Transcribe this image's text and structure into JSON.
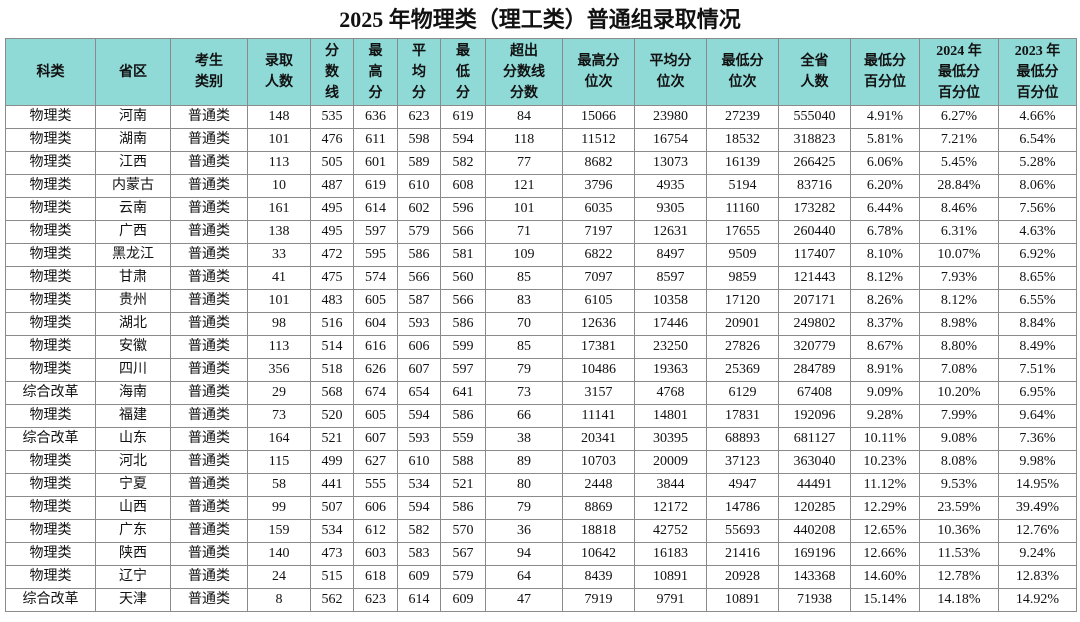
{
  "header": {
    "title": "2025 年物理类（理工类）普通组录取情况"
  },
  "table": {
    "columns": [
      "科类",
      "省区",
      "考生\n类别",
      "录取\n人数",
      "分\n数\n线",
      "最\n高\n分",
      "平\n均\n分",
      "最\n低\n分",
      "超出\n分数线\n分数",
      "最高分\n位次",
      "平均分\n位次",
      "最低分\n位次",
      "全省\n人数",
      "最低分\n百分位",
      "2024 年\n最低分\n百分位",
      "2023 年\n最低分\n百分位"
    ],
    "rows": [
      [
        "物理类",
        "河南",
        "普通类",
        "148",
        "535",
        "636",
        "623",
        "619",
        "84",
        "15066",
        "23980",
        "27239",
        "555040",
        "4.91%",
        "6.27%",
        "4.66%"
      ],
      [
        "物理类",
        "湖南",
        "普通类",
        "101",
        "476",
        "611",
        "598",
        "594",
        "118",
        "11512",
        "16754",
        "18532",
        "318823",
        "5.81%",
        "7.21%",
        "6.54%"
      ],
      [
        "物理类",
        "江西",
        "普通类",
        "113",
        "505",
        "601",
        "589",
        "582",
        "77",
        "8682",
        "13073",
        "16139",
        "266425",
        "6.06%",
        "5.45%",
        "5.28%"
      ],
      [
        "物理类",
        "内蒙古",
        "普通类",
        "10",
        "487",
        "619",
        "610",
        "608",
        "121",
        "3796",
        "4935",
        "5194",
        "83716",
        "6.20%",
        "28.84%",
        "8.06%"
      ],
      [
        "物理类",
        "云南",
        "普通类",
        "161",
        "495",
        "614",
        "602",
        "596",
        "101",
        "6035",
        "9305",
        "11160",
        "173282",
        "6.44%",
        "8.46%",
        "7.56%"
      ],
      [
        "物理类",
        "广西",
        "普通类",
        "138",
        "495",
        "597",
        "579",
        "566",
        "71",
        "7197",
        "12631",
        "17655",
        "260440",
        "6.78%",
        "6.31%",
        "4.63%"
      ],
      [
        "物理类",
        "黑龙江",
        "普通类",
        "33",
        "472",
        "595",
        "586",
        "581",
        "109",
        "6822",
        "8497",
        "9509",
        "117407",
        "8.10%",
        "10.07%",
        "6.92%"
      ],
      [
        "物理类",
        "甘肃",
        "普通类",
        "41",
        "475",
        "574",
        "566",
        "560",
        "85",
        "7097",
        "8597",
        "9859",
        "121443",
        "8.12%",
        "7.93%",
        "8.65%"
      ],
      [
        "物理类",
        "贵州",
        "普通类",
        "101",
        "483",
        "605",
        "587",
        "566",
        "83",
        "6105",
        "10358",
        "17120",
        "207171",
        "8.26%",
        "8.12%",
        "6.55%"
      ],
      [
        "物理类",
        "湖北",
        "普通类",
        "98",
        "516",
        "604",
        "593",
        "586",
        "70",
        "12636",
        "17446",
        "20901",
        "249802",
        "8.37%",
        "8.98%",
        "8.84%"
      ],
      [
        "物理类",
        "安徽",
        "普通类",
        "113",
        "514",
        "616",
        "606",
        "599",
        "85",
        "17381",
        "23250",
        "27826",
        "320779",
        "8.67%",
        "8.80%",
        "8.49%"
      ],
      [
        "物理类",
        "四川",
        "普通类",
        "356",
        "518",
        "626",
        "607",
        "597",
        "79",
        "10486",
        "19363",
        "25369",
        "284789",
        "8.91%",
        "7.08%",
        "7.51%"
      ],
      [
        "综合改革",
        "海南",
        "普通类",
        "29",
        "568",
        "674",
        "654",
        "641",
        "73",
        "3157",
        "4768",
        "6129",
        "67408",
        "9.09%",
        "10.20%",
        "6.95%"
      ],
      [
        "物理类",
        "福建",
        "普通类",
        "73",
        "520",
        "605",
        "594",
        "586",
        "66",
        "11141",
        "14801",
        "17831",
        "192096",
        "9.28%",
        "7.99%",
        "9.64%"
      ],
      [
        "综合改革",
        "山东",
        "普通类",
        "164",
        "521",
        "607",
        "593",
        "559",
        "38",
        "20341",
        "30395",
        "68893",
        "681127",
        "10.11%",
        "9.08%",
        "7.36%"
      ],
      [
        "物理类",
        "河北",
        "普通类",
        "115",
        "499",
        "627",
        "610",
        "588",
        "89",
        "10703",
        "20009",
        "37123",
        "363040",
        "10.23%",
        "8.08%",
        "9.98%"
      ],
      [
        "物理类",
        "宁夏",
        "普通类",
        "58",
        "441",
        "555",
        "534",
        "521",
        "80",
        "2448",
        "3844",
        "4947",
        "44491",
        "11.12%",
        "9.53%",
        "14.95%"
      ],
      [
        "物理类",
        "山西",
        "普通类",
        "99",
        "507",
        "606",
        "594",
        "586",
        "79",
        "8869",
        "12172",
        "14786",
        "120285",
        "12.29%",
        "23.59%",
        "39.49%"
      ],
      [
        "物理类",
        "广东",
        "普通类",
        "159",
        "534",
        "612",
        "582",
        "570",
        "36",
        "18818",
        "42752",
        "55693",
        "440208",
        "12.65%",
        "10.36%",
        "12.76%"
      ],
      [
        "物理类",
        "陕西",
        "普通类",
        "140",
        "473",
        "603",
        "583",
        "567",
        "94",
        "10642",
        "16183",
        "21416",
        "169196",
        "12.66%",
        "11.53%",
        "9.24%"
      ],
      [
        "物理类",
        "辽宁",
        "普通类",
        "24",
        "515",
        "618",
        "609",
        "579",
        "64",
        "8439",
        "10891",
        "20928",
        "143368",
        "14.60%",
        "12.78%",
        "12.83%"
      ],
      [
        "综合改革",
        "天津",
        "普通类",
        "8",
        "562",
        "623",
        "614",
        "609",
        "47",
        "7919",
        "9791",
        "10891",
        "71938",
        "15.14%",
        "14.18%",
        "14.92%"
      ]
    ]
  }
}
